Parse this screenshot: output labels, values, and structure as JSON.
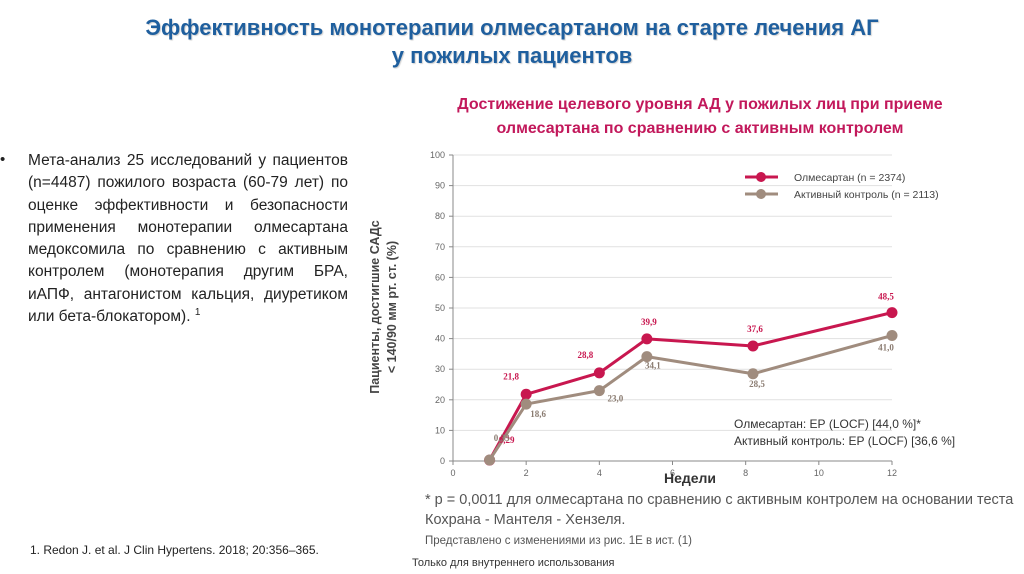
{
  "slide": {
    "title_line1": "Эффективность монотерапии олмесартаном на старте лечения АГ",
    "title_line2": "у пожилых пациентов",
    "chart_heading_line1": "Достижение целевого уровня АД у пожилых лиц при приеме",
    "chart_heading_line2": "олмесартана по сравнению с активным контролем",
    "bullet_marker": "•",
    "bullet_text": "Мета-анализ 25 исследований у пациентов (n=4487) пожилого возраста (60-79 лет) по оценке эффективности и безопасности применения монотерапии олмесартана медоксомила по сравнению с активным контролем (монотерапия другим БРА, иАПФ, антагонистом кальция, диуретиком или бета-блокатором).",
    "bullet_sup": "1",
    "reference": "1. Redon J. et al. J Clin Hypertens. 2018; 20:356–365.",
    "footnote_line1": "* p = 0,0011 для олмесартана по сравнению с активным контролем на основании теста Кохрана - Мантеля - Хензеля.",
    "footnote_line2": "Представлено с изменениями из рис. 1E в ист. (1)",
    "internal_use": "Только для внутреннего использования"
  },
  "colors": {
    "title_blue": "#1f5f9e",
    "heading_red": "#c2185b",
    "olmesartan": "#c8174f",
    "active_control": "#a08c7e"
  },
  "chart_data": {
    "type": "line",
    "title": "Достижение целевого уровня АД у пожилых лиц при приеме олмесартана по сравнению с активным контролем",
    "xlabel": "Недели",
    "ylabel_line1": "Пациенты, достигшие САДс",
    "ylabel_line2": "< 140/90 мм рт. ст. (%)",
    "xlim": [
      0,
      12
    ],
    "ylim": [
      0,
      100
    ],
    "xticks": [
      0,
      2,
      4,
      6,
      8,
      10,
      12
    ],
    "yticks": [
      0,
      10,
      20,
      30,
      40,
      50,
      60,
      70,
      80,
      90,
      100
    ],
    "legend_position": "top-right",
    "series": [
      {
        "name": "Олмесартан",
        "n_label": "(n = 2374)",
        "color": "#c8174f",
        "x": [
          1,
          2,
          4,
          5.3,
          8.2,
          12
        ],
        "values": [
          0.29,
          21.8,
          28.8,
          39.9,
          37.6,
          48.5
        ],
        "labels": [
          "0,29",
          "21,8",
          "28,8",
          "39,9",
          "37,6",
          "48,5"
        ]
      },
      {
        "name": "Активный контроль",
        "n_label": "(n = 2113)",
        "color": "#a08c7e",
        "x": [
          1,
          2,
          4,
          5.3,
          8.2,
          12
        ],
        "values": [
          0.33,
          18.6,
          23.0,
          34.1,
          28.5,
          41.0
        ],
        "labels": [
          "0,33",
          "18,6",
          "23,0",
          "34,1",
          "28,5",
          "41,0"
        ]
      }
    ],
    "annotations": [
      "Олмесартан: ЕР (LOCF) [44,0 %]*",
      "Активный контроль: ЕР (LOCF) [36,6 %]"
    ]
  }
}
